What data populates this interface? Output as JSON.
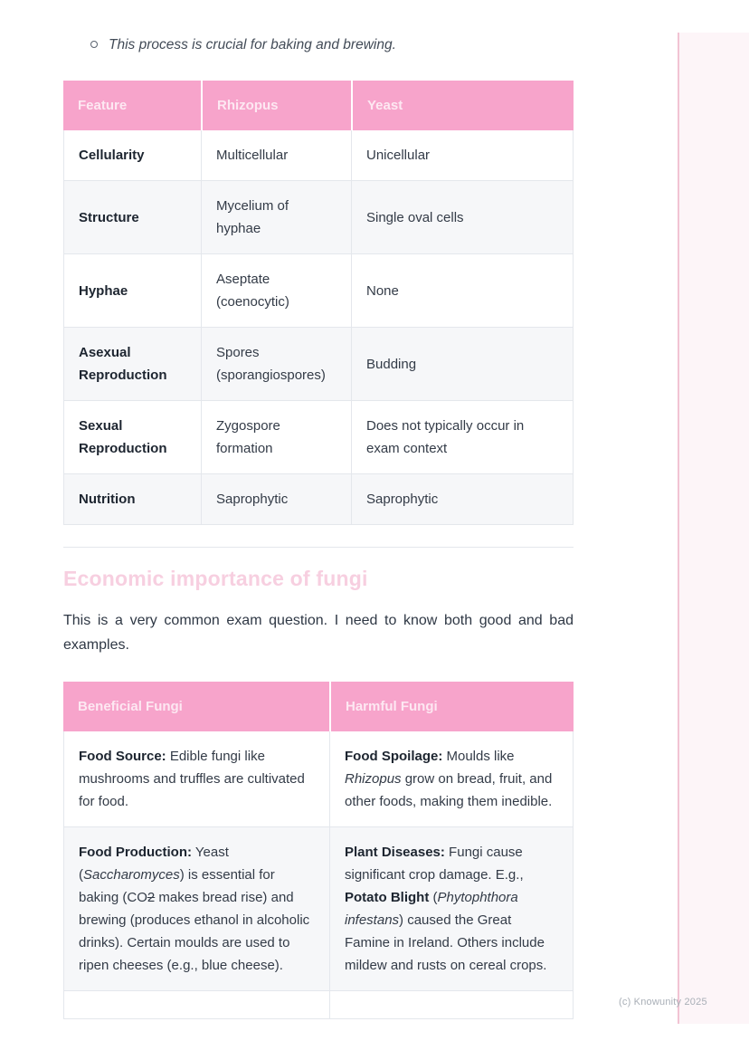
{
  "note": {
    "bullet_text": "This process is crucial for baking and brewing."
  },
  "comparison_table": {
    "headers": [
      "Feature",
      "Rhizopus",
      "Yeast"
    ],
    "rows": [
      [
        "Cellularity",
        "Multicellular",
        "Unicellular"
      ],
      [
        "Structure",
        "Mycelium of hyphae",
        "Single oval cells"
      ],
      [
        "Hyphae",
        "Aseptate (coenocytic)",
        "None"
      ],
      [
        "Asexual Reproduction",
        "Spores (sporangiospores)",
        "Budding"
      ],
      [
        "Sexual Reproduction",
        "Zygospore formation",
        "Does not typically occur in exam context"
      ],
      [
        "Nutrition",
        "Saprophytic",
        "Saprophytic"
      ]
    ]
  },
  "section": {
    "heading": "Economic importance of fungi",
    "paragraph": "This is a very common exam question. I need to know both good and bad examples."
  },
  "fungi_table": {
    "headers": [
      "Beneficial Fungi",
      "Harmful Fungi"
    ],
    "rows": [
      [
        [
          {
            "t": "Food Source:",
            "b": true
          },
          {
            "t": " Edible fungi like mushrooms and truffles are cultivated for food."
          }
        ],
        [
          {
            "t": "Food Spoilage:",
            "b": true
          },
          {
            "t": " Moulds like "
          },
          {
            "t": "Rhizopus",
            "i": true
          },
          {
            "t": " grow on bread, fruit, and other foods, making them inedible."
          }
        ]
      ],
      [
        [
          {
            "t": "Food Production:",
            "b": true
          },
          {
            "t": " Yeast ("
          },
          {
            "t": "Saccharomyces",
            "i": true
          },
          {
            "t": ") is essential for baking (CO"
          },
          {
            "t": "2",
            "s": true
          },
          {
            "t": " makes bread rise) and brewing (produces ethanol in alcoholic drinks). Certain moulds are used to ripen cheeses (e.g., blue cheese)."
          }
        ],
        [
          {
            "t": "Plant Diseases:",
            "b": true
          },
          {
            "t": " Fungi cause significant crop damage. E.g., "
          },
          {
            "t": "Potato Blight",
            "b": true
          },
          {
            "t": " ("
          },
          {
            "t": "Phytophthora infestans",
            "i": true
          },
          {
            "t": ") caused the Great Famine in Ireland. Others include mildew and rusts on cereal crops."
          }
        ]
      ],
      [
        "",
        ""
      ]
    ]
  },
  "footer": {
    "watermark": "(c) Knowunity 2025"
  },
  "colors": {
    "header_pink": "#f7a4cb",
    "header_text": "#fde8f2",
    "heading_pink": "#f7cfe0",
    "stripe": "#f6f7f9",
    "border": "#e4e7ec",
    "text": "#333b47",
    "text_bold": "#1d2530",
    "accent_line": "#f2c3d3",
    "margin_tint": "#fdf5f8",
    "watermark_gray": "#a9afb7"
  }
}
